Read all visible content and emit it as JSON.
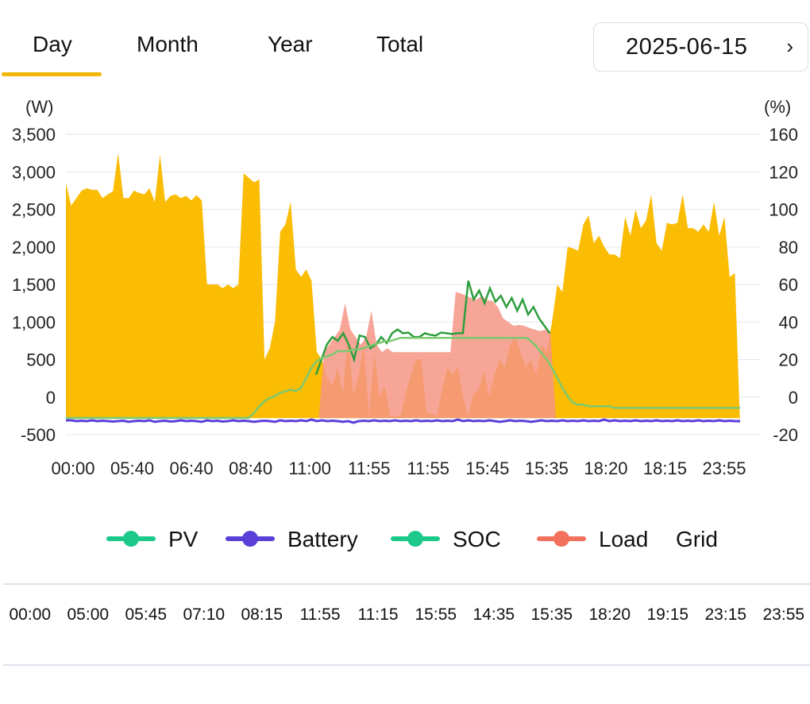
{
  "tabs": [
    {
      "label": "Day",
      "active": true
    },
    {
      "label": "Month",
      "active": false
    },
    {
      "label": "Year",
      "active": false
    },
    {
      "label": "Total",
      "active": false
    }
  ],
  "date_picker": {
    "value": "2025-06-15",
    "next_icon": "chevron-right-icon"
  },
  "colors": {
    "accent": "#F2B705",
    "pv_fill": "#FBBC04",
    "load_fill": "#F59585",
    "pv_line": "#1DC98A",
    "soc_line": "#2E9E3E",
    "battery": "#5B3FD9",
    "load": "#F2705C"
  },
  "chart_data": {
    "type": "area",
    "y_left_unit": "(W)",
    "y_right_unit": "(%)",
    "y_left_ticks": [
      "3,500",
      "3,000",
      "2,500",
      "2,000",
      "1,500",
      "1,000",
      "500",
      "0",
      "-500"
    ],
    "y_right_ticks": [
      "160",
      "120",
      "100",
      "80",
      "60",
      "40",
      "20",
      "0",
      "-20"
    ],
    "y_left_range": [
      -500,
      3500
    ],
    "y_right_range": [
      -20,
      160
    ],
    "x_tick_labels": [
      "00:00",
      "05:40",
      "06:40",
      "08:40",
      "11:00",
      "11:55",
      "11:55",
      "15:45",
      "15:35",
      "18:20",
      "18:15",
      "23:55"
    ],
    "grid": true,
    "series": [
      {
        "name": "PV",
        "kind": "area",
        "values": [
          2850,
          2550,
          2650,
          2750,
          2780,
          2760,
          2760,
          2650,
          2700,
          2740,
          3250,
          2650,
          2650,
          2750,
          2720,
          2700,
          2780,
          2600,
          3230,
          2600,
          2680,
          2700,
          2650,
          2680,
          2620,
          2690,
          2620,
          1500,
          1500,
          1500,
          1450,
          1500,
          1450,
          1500,
          2980,
          2920,
          2860,
          2900,
          500,
          650,
          1000,
          2200,
          2300,
          2600,
          1700,
          1600,
          1700,
          1550,
          600,
          500,
          250,
          150,
          400,
          50,
          800,
          20,
          300,
          700,
          -250,
          600,
          10,
          150,
          -250,
          -250,
          -250,
          50,
          300,
          500,
          500,
          -200,
          -220,
          -250,
          100,
          400,
          300,
          400,
          0,
          -250,
          50,
          100,
          350,
          10,
          300,
          500,
          400,
          700,
          800,
          600,
          400,
          500,
          300,
          700,
          600,
          1000,
          1500,
          1400,
          2000,
          1980,
          1950,
          2300,
          2420,
          2050,
          2150,
          2000,
          1900,
          1900,
          1850,
          2400,
          2150,
          2500,
          2250,
          2350,
          2700,
          2050,
          1950,
          2320,
          2300,
          2320,
          2700,
          2250,
          2250,
          2200,
          2300,
          2200,
          2600,
          2150,
          2400,
          1600,
          1650,
          -400
        ],
        "color": "#FBBC04"
      },
      {
        "name": "Load",
        "kind": "area",
        "values": [
          -280,
          -280,
          -280,
          -280,
          -280,
          -280,
          -280,
          -280,
          -280,
          -280,
          -280,
          -280,
          -280,
          -280,
          -280,
          -280,
          -280,
          -280,
          -280,
          -280,
          -280,
          -280,
          -280,
          -280,
          -280,
          -280,
          -280,
          -280,
          -280,
          -280,
          -280,
          -280,
          -280,
          -280,
          -280,
          -280,
          -280,
          -280,
          -280,
          -280,
          -280,
          -280,
          -280,
          -280,
          -280,
          -280,
          -280,
          -280,
          -280,
          600,
          700,
          800,
          900,
          1250,
          900,
          800,
          700,
          800,
          1150,
          700,
          600,
          650,
          600,
          600,
          600,
          600,
          600,
          600,
          600,
          600,
          600,
          600,
          600,
          600,
          1400,
          1380,
          1350,
          1320,
          1300,
          1350,
          1290,
          1280,
          1200,
          1050,
          1000,
          950,
          960,
          950,
          920,
          900,
          880,
          900,
          860,
          -280,
          -280,
          -280,
          -280,
          -280,
          -280,
          -280,
          -280,
          -280,
          -280,
          -280,
          -280,
          -280,
          -280,
          -280,
          -280,
          -280,
          -280,
          -280,
          -280,
          -280,
          -280,
          -280,
          -280,
          -280,
          -280,
          -280,
          -280,
          -280,
          -280,
          -280,
          -280,
          -280,
          -280,
          -280,
          -280
        ],
        "color": "#F59585"
      },
      {
        "name": "SOC",
        "kind": "line",
        "values": [
          -10,
          -10,
          -10,
          -10,
          -10,
          -10,
          -10,
          -10,
          -10,
          -10,
          -10,
          -10,
          -10,
          -10,
          -10,
          -10,
          -10,
          -10,
          -10,
          -10,
          -10,
          -10,
          -10,
          -10,
          -10,
          -10,
          -10,
          -10,
          -10,
          -10,
          -10,
          -10,
          -10,
          -10,
          -10,
          -10,
          -7,
          -3,
          0,
          2,
          3,
          5,
          6,
          7,
          6,
          8,
          14,
          20,
          24,
          26,
          27,
          28,
          30,
          30,
          30,
          31,
          31,
          32,
          33,
          34,
          35,
          36,
          36,
          37,
          38,
          38,
          38,
          38,
          38,
          38,
          38,
          38,
          38,
          38,
          38,
          38,
          38,
          38,
          38,
          38,
          38,
          38,
          38,
          38,
          38,
          38,
          38,
          38,
          38,
          36,
          33,
          29,
          25,
          20,
          14,
          8,
          3,
          -1,
          -2,
          -2,
          -3,
          -3,
          -3,
          -3,
          -3,
          -4,
          -4,
          -4,
          -4,
          -4,
          -4,
          -4,
          -4,
          -4,
          -4,
          -4,
          -4,
          -4,
          -4,
          -4,
          -4,
          -4,
          -4,
          -4,
          -4,
          -4,
          -4,
          -4,
          -4,
          -4
        ],
        "color": "#1DC98A"
      },
      {
        "name": "Grid",
        "kind": "line",
        "values": [
          null,
          null,
          null,
          null,
          null,
          null,
          null,
          null,
          null,
          null,
          null,
          null,
          null,
          null,
          null,
          null,
          null,
          null,
          null,
          null,
          null,
          null,
          null,
          null,
          null,
          null,
          null,
          null,
          null,
          null,
          null,
          null,
          null,
          null,
          null,
          null,
          null,
          null,
          null,
          null,
          null,
          null,
          null,
          null,
          null,
          null,
          300,
          500,
          700,
          800,
          750,
          850,
          700,
          500,
          820,
          800,
          650,
          700,
          800,
          720,
          850,
          900,
          850,
          860,
          800,
          800,
          850,
          830,
          820,
          860,
          850,
          840,
          850,
          850,
          1550,
          1300,
          1420,
          1250,
          1450,
          1270,
          1350,
          1200,
          1320,
          1150,
          1300,
          1100,
          1200,
          1050,
          950,
          850,
          null,
          null,
          null,
          null,
          null,
          null,
          null,
          null,
          null,
          null,
          null,
          null,
          null,
          null,
          null,
          null,
          null,
          null,
          null,
          null,
          null,
          null,
          null,
          null,
          null,
          null,
          null,
          null,
          null,
          null,
          null,
          null,
          null,
          null,
          null
        ],
        "color": "#2E9E3E"
      },
      {
        "name": "Battery",
        "kind": "line",
        "values": [
          -310,
          -310,
          -320,
          -315,
          -320,
          -310,
          -320,
          -315,
          -320,
          -325,
          -320,
          -315,
          -330,
          -320,
          -315,
          -320,
          -310,
          -330,
          -320,
          -315,
          -325,
          -320,
          -310,
          -320,
          -315,
          -320,
          -330,
          -310,
          -320,
          -315,
          -325,
          -320,
          -310,
          -320,
          -315,
          -320,
          -330,
          -320,
          -315,
          -320,
          -330,
          -310,
          -320,
          -315,
          -320,
          -310,
          -320,
          -300,
          -320,
          -310,
          -320,
          -315,
          -320,
          -330,
          -320,
          -340,
          -320,
          -315,
          -320,
          -310,
          -320,
          -315,
          -320,
          -310,
          -320,
          -315,
          -320,
          -310,
          -320,
          -315,
          -320,
          -310,
          -320,
          -315,
          -320,
          -300,
          -320,
          -310,
          -320,
          -315,
          -320,
          -310,
          -320,
          -330,
          -320,
          -310,
          -320,
          -315,
          -320,
          -330,
          -320,
          -310,
          -320,
          -315,
          -320,
          -310,
          -320,
          -315,
          -320,
          -310,
          -320,
          -315,
          -320,
          -300,
          -320,
          -310,
          -320,
          -315,
          -320,
          -310,
          -320,
          -315,
          -320,
          -310,
          -320,
          -315,
          -320,
          -310,
          -320,
          -315,
          -320,
          -310,
          -320,
          -315,
          -320,
          -310,
          -320,
          -315,
          -320,
          -320
        ],
        "color": "#5B3FD9"
      }
    ],
    "legend": [
      {
        "name": "PV",
        "color": "#1DC98A",
        "marker": true
      },
      {
        "name": "Battery",
        "color": "#5B3FD9",
        "marker": true
      },
      {
        "name": "SOC",
        "color": "#1DC98A",
        "marker": true
      },
      {
        "name": "Load",
        "color": "#F2705C",
        "marker": true
      },
      {
        "name": "Grid",
        "color": "",
        "marker": false
      }
    ]
  },
  "time_row": [
    "00:00",
    "05:00",
    "05:45",
    "07:10",
    "08:15",
    "11:55",
    "11:15",
    "15:55",
    "14:35",
    "15:35",
    "18:20",
    "19:15",
    "23:15",
    "23:55"
  ]
}
